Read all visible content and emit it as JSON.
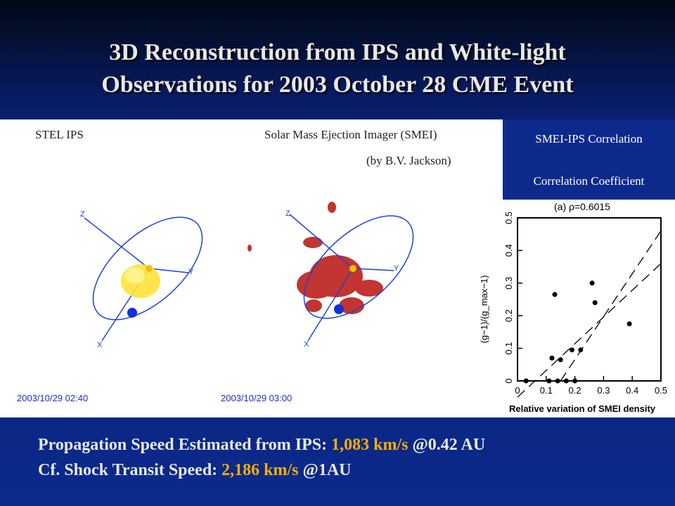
{
  "slide": {
    "title_line1": "3D Reconstruction from IPS and White-light",
    "title_line2": "Observations for 2003 October 28 CME Event"
  },
  "panels": {
    "ips_label": "STEL IPS",
    "smei_label": "Solar Mass Ejection Imager (SMEI)",
    "smei_credit": "(by B.V. Jackson)",
    "ips_date": "2003/10/29 02:40",
    "smei_date": "2003/10/29 03:00",
    "axis_labels": [
      "Z",
      "Y",
      "X"
    ]
  },
  "correlation_box": {
    "title": "SMEI-IPS Correlation",
    "subtitle": "Correlation Coefficient"
  },
  "bottom": {
    "line1_prefix": "Propagation Speed Estimated from IPS: ",
    "line1_value": "1,083 km/s",
    "line1_suffix": " @0.42 AU",
    "line2_prefix": "Cf. Shock Transit Speed: ",
    "line2_value": "2,186 km/s",
    "line2_suffix": " @1AU"
  },
  "colors": {
    "highlight": "#f5b000",
    "background": "#0b2a8c",
    "orbit": "#2040d8"
  },
  "chart_data": {
    "type": "scatter",
    "title": "(a) ρ=0.6015",
    "xlabel": "Relative variation of SMEI density",
    "ylabel": "(g−1)/(g_max−1)",
    "xlim": [
      0,
      0.5
    ],
    "ylim": [
      0,
      0.5
    ],
    "xticks": [
      "0",
      "0.1",
      "0.2",
      "0.3",
      "0.4",
      "0.5"
    ],
    "yticks": [
      "0",
      "0.1",
      "0.2",
      "0.3",
      "0.4",
      "0.5"
    ],
    "points": [
      {
        "x": 0.03,
        "y": 0.0
      },
      {
        "x": 0.11,
        "y": 0.0
      },
      {
        "x": 0.14,
        "y": 0.0
      },
      {
        "x": 0.17,
        "y": 0.0
      },
      {
        "x": 0.2,
        "y": 0.0
      },
      {
        "x": 0.12,
        "y": 0.07
      },
      {
        "x": 0.15,
        "y": 0.065
      },
      {
        "x": 0.19,
        "y": 0.095
      },
      {
        "x": 0.22,
        "y": 0.095
      },
      {
        "x": 0.13,
        "y": 0.265
      },
      {
        "x": 0.26,
        "y": 0.3
      },
      {
        "x": 0.27,
        "y": 0.24
      },
      {
        "x": 0.39,
        "y": 0.175
      }
    ],
    "fit_lines": [
      {
        "x": [
          0.15,
          0.5
        ],
        "y": [
          0.0,
          0.46
        ]
      },
      {
        "x": [
          0.0,
          0.5
        ],
        "y": [
          -0.05,
          0.36
        ]
      }
    ]
  }
}
